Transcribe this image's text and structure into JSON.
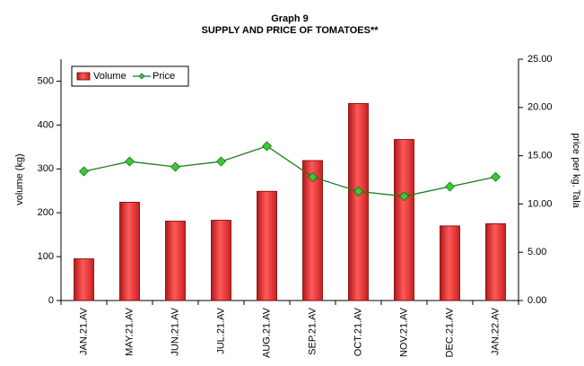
{
  "chart_data": {
    "type": "bar_line",
    "title": "Graph 9",
    "subtitle": "SUPPLY AND PRICE OF TOMATOES**",
    "y_label": "volume (kg)",
    "y2_label": "price per kg. Tala",
    "categories": [
      "JAN.21.AV",
      "MAY.21.AV",
      "JUN.21.AV",
      "JUL.21.AV",
      "AUG.21.AV",
      "SEP.21.AV",
      "OCT.21.AV",
      "NOV.21.AV",
      "DEC.21.AV",
      "JAN.22.AV"
    ],
    "series": [
      {
        "name": "Volume",
        "color": "#e8393b",
        "values": [
          95,
          224,
          181,
          183,
          249,
          319,
          449,
          367,
          170,
          175
        ]
      },
      {
        "name": "Price",
        "color": "#1f7a1f",
        "axis": "y2",
        "values": [
          13.38,
          14.4,
          13.85,
          14.4,
          16.0,
          12.8,
          11.3,
          10.8,
          11.8,
          12.8
        ]
      }
    ],
    "ylim": [
      0,
      550
    ],
    "yticks": [
      0,
      100,
      200,
      300,
      400,
      500
    ],
    "y2lim": [
      0,
      25
    ],
    "y2ticks": [
      {
        "value": 0,
        "label": "0.00"
      },
      {
        "value": 5,
        "label": "5.00"
      },
      {
        "value": 10,
        "label": "10.00"
      },
      {
        "value": 15,
        "label": "15.00"
      },
      {
        "value": 20,
        "label": "20.00"
      },
      {
        "value": 25,
        "label": "25.00"
      }
    ],
    "legend": "upper left"
  }
}
